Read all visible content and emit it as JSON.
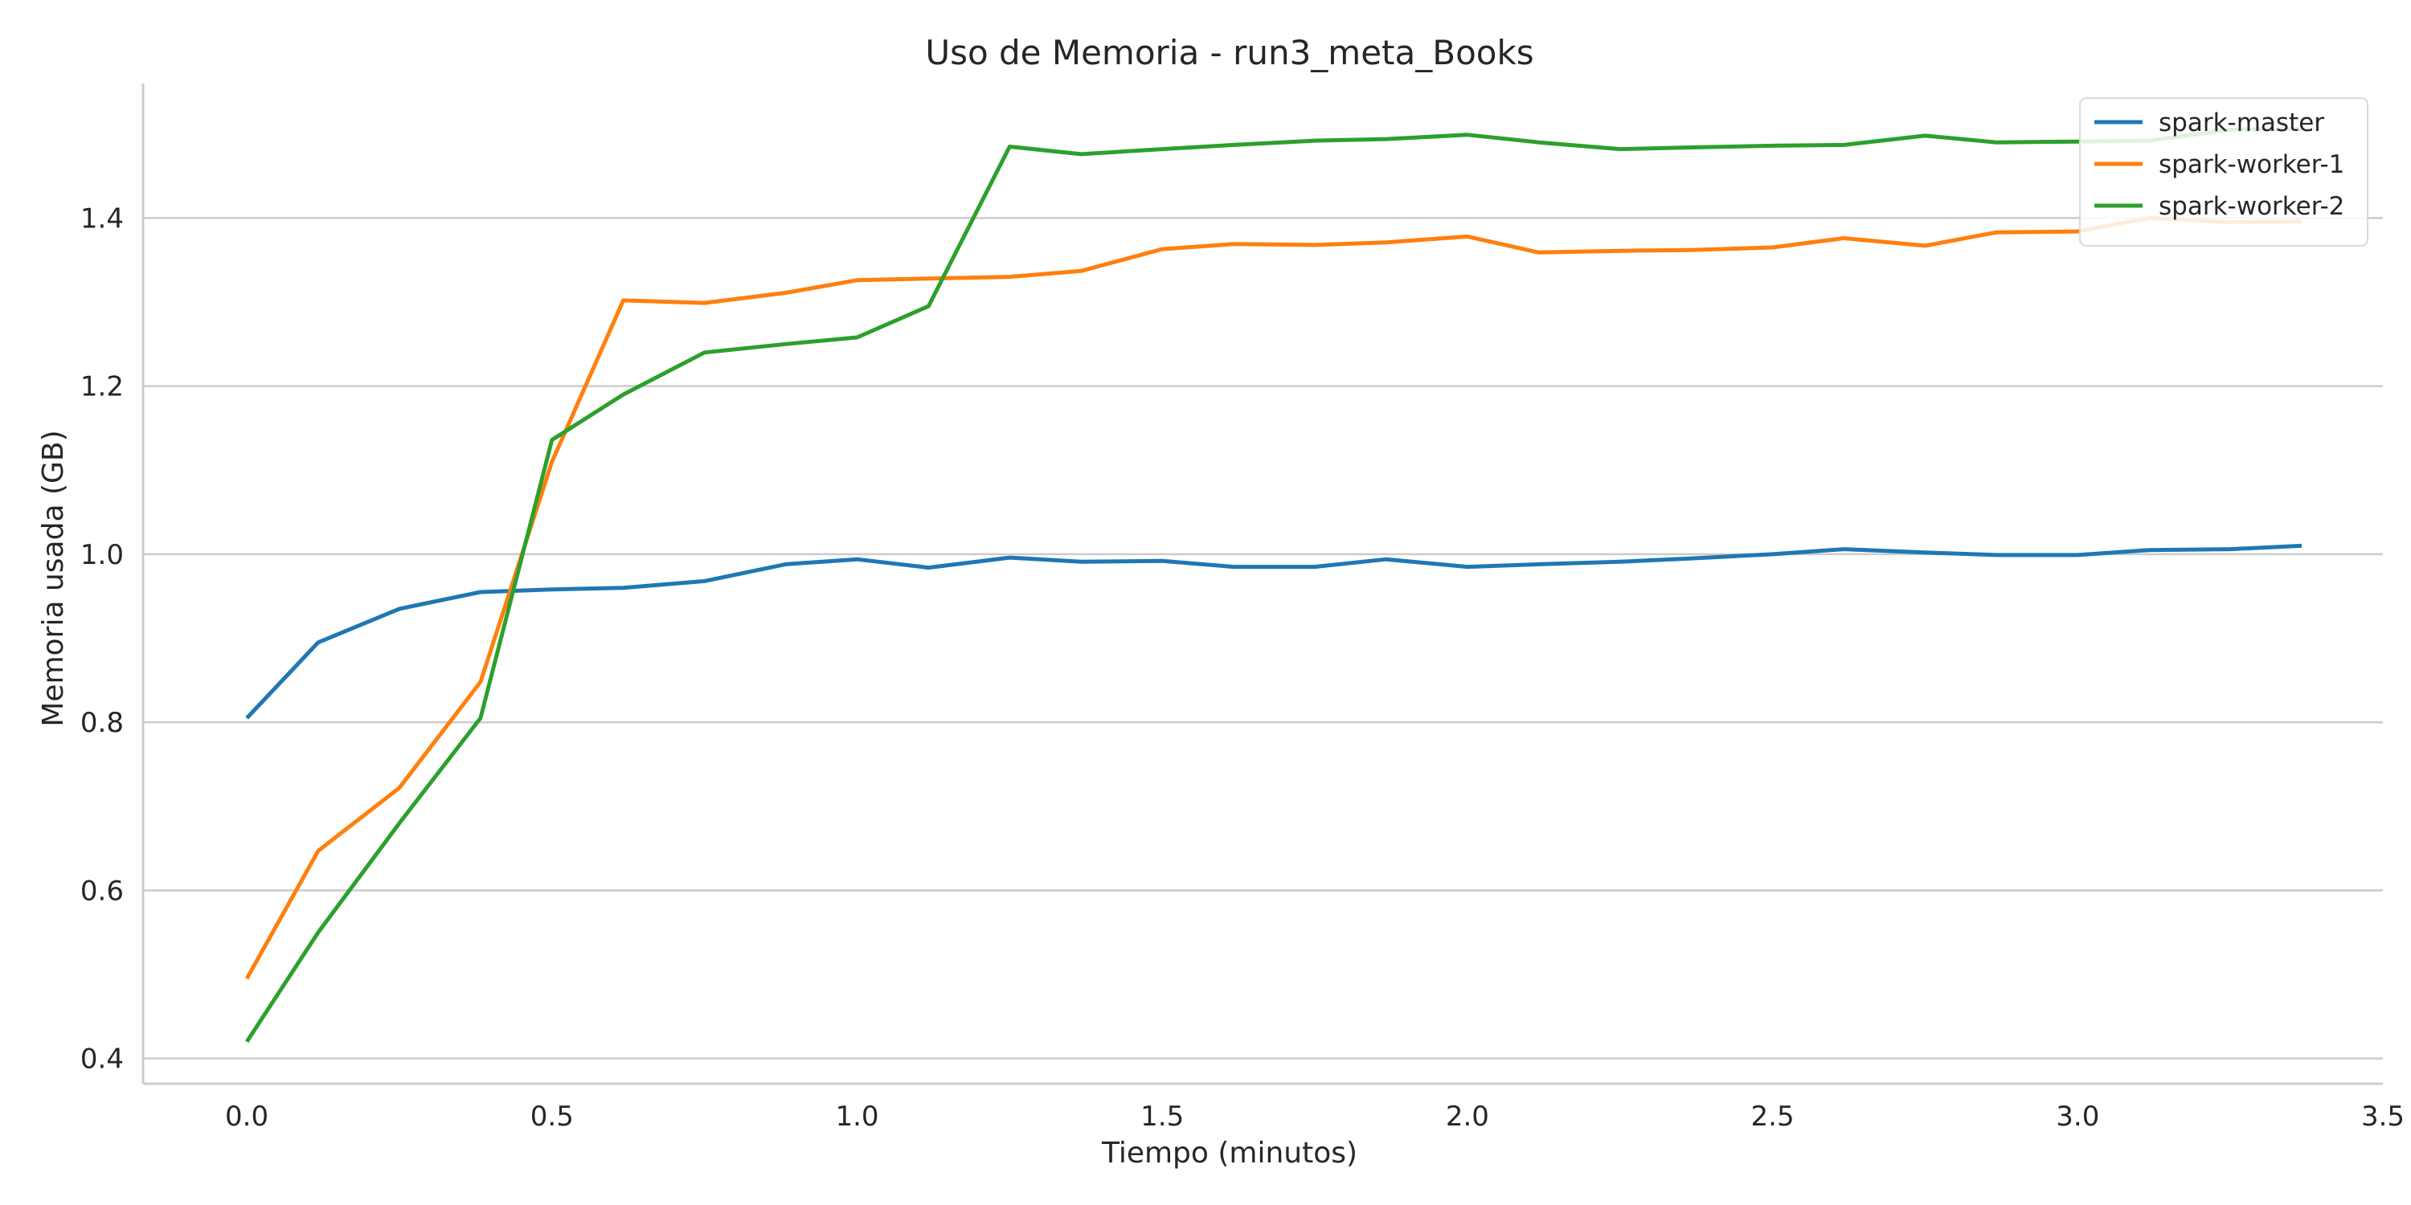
{
  "chart_data": {
    "type": "line",
    "title": "Uso de Memoria - run3_meta_Books",
    "xlabel": "Tiempo (minutos)",
    "ylabel": "Memoria usada (GB)",
    "xlim": [
      -0.17,
      3.5
    ],
    "ylim": [
      0.37,
      1.56
    ],
    "xticks": [
      "0.0",
      "0.5",
      "1.0",
      "1.5",
      "2.0",
      "2.5",
      "3.0",
      "3.5"
    ],
    "yticks": [
      "0.4",
      "0.6",
      "0.8",
      "1.0",
      "1.2",
      "1.4"
    ],
    "grid": "horizontal",
    "legend_position": "top-right",
    "x": [
      0.0,
      0.117,
      0.25,
      0.383,
      0.5,
      0.617,
      0.75,
      0.883,
      1.0,
      1.117,
      1.25,
      1.367,
      1.5,
      1.617,
      1.75,
      1.867,
      2.0,
      2.117,
      2.25,
      2.367,
      2.5,
      2.617,
      2.75,
      2.867,
      3.0,
      3.117,
      3.25,
      3.367
    ],
    "series": [
      {
        "name": "spark-master",
        "color": "#1f77b4",
        "values": [
          0.805,
          0.895,
          0.935,
          0.955,
          0.958,
          0.96,
          0.968,
          0.988,
          0.994,
          0.984,
          0.996,
          0.991,
          0.992,
          0.985,
          0.985,
          0.994,
          0.985,
          0.988,
          0.991,
          0.995,
          1.0,
          1.006,
          1.002,
          0.999,
          0.999,
          1.005,
          1.006,
          1.01
        ]
      },
      {
        "name": "spark-worker-1",
        "color": "#ff7f0e",
        "values": [
          0.495,
          0.647,
          0.722,
          0.848,
          1.11,
          1.302,
          1.299,
          1.311,
          1.326,
          1.328,
          1.33,
          1.337,
          1.363,
          1.369,
          1.368,
          1.371,
          1.378,
          1.359,
          1.361,
          1.362,
          1.365,
          1.376,
          1.367,
          1.383,
          1.384,
          1.4,
          1.395,
          1.396
        ]
      },
      {
        "name": "spark-worker-2",
        "color": "#2ca02c",
        "values": [
          0.42,
          0.55,
          0.68,
          0.805,
          1.136,
          1.19,
          1.24,
          1.25,
          1.258,
          1.295,
          1.485,
          1.476,
          1.482,
          1.487,
          1.492,
          1.494,
          1.499,
          1.49,
          1.482,
          1.484,
          1.486,
          1.487,
          1.498,
          1.49,
          1.491,
          1.492,
          1.505,
          1.506
        ]
      }
    ]
  }
}
